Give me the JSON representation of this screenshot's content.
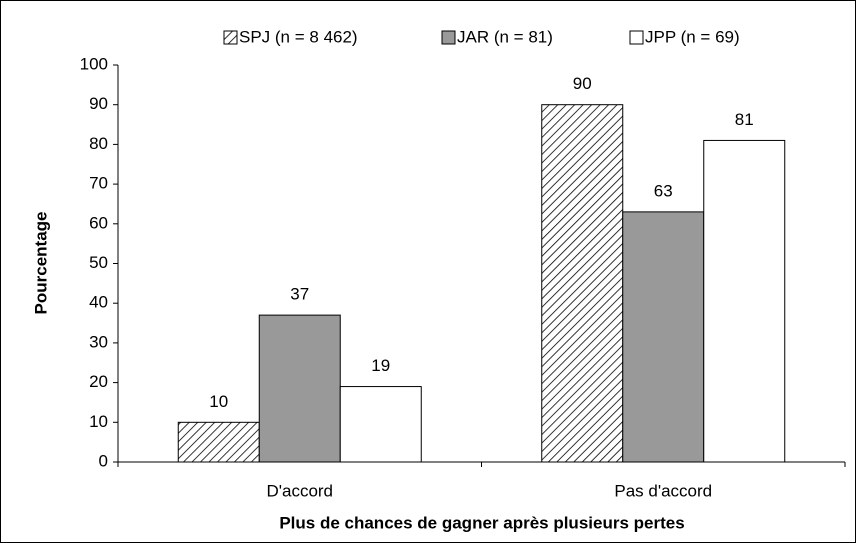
{
  "chart_data": {
    "type": "bar",
    "xlabel": "Plus de chances de gagner après plusieurs pertes",
    "ylabel": "Pourcentage",
    "categories": [
      "D'accord",
      "Pas d'accord"
    ],
    "series": [
      {
        "name": "SPJ (n = 8 462)",
        "color": "#ffffff",
        "pattern": "hatch",
        "values": [
          10,
          90
        ]
      },
      {
        "name": "JAR (n = 81)",
        "color": "#999999",
        "values": [
          37,
          63
        ]
      },
      {
        "name": "JPP (n = 69)",
        "color": "#ffffff",
        "values": [
          19,
          81
        ]
      }
    ],
    "ylim": [
      0,
      100
    ],
    "yticks": [
      0,
      10,
      20,
      30,
      40,
      50,
      60,
      70,
      80,
      90,
      100
    ],
    "legend": "top",
    "grid": false
  }
}
